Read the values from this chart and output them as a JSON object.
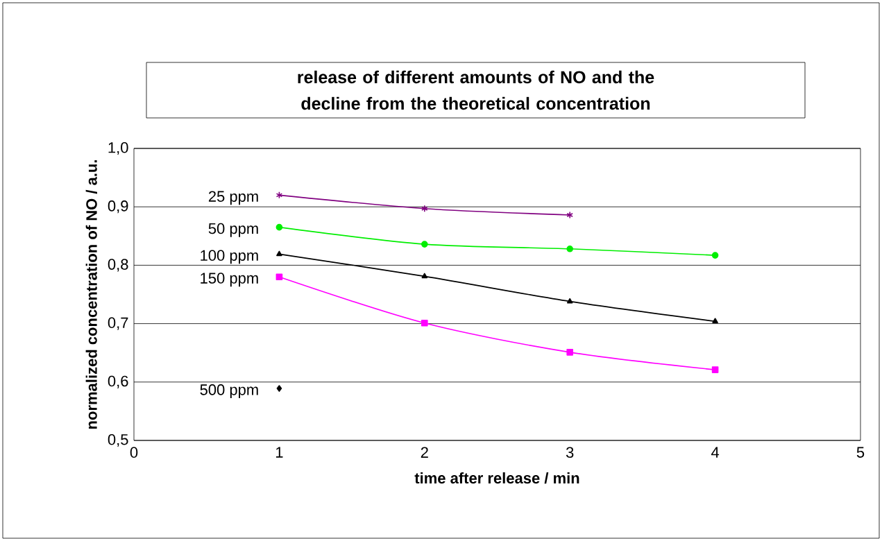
{
  "chart_data": {
    "type": "line",
    "title": "release of different amounts of NO and the decline from the theoretical concentration",
    "xlabel": "time after release / min",
    "ylabel": "normalized concentration of NO / a.u.",
    "xlim": [
      0,
      5
    ],
    "xticks": [
      0,
      1,
      2,
      3,
      4,
      5
    ],
    "ylim": [
      0.5,
      1.0
    ],
    "yticks": [
      {
        "value": 0.5,
        "label": "0,5"
      },
      {
        "value": 0.6,
        "label": "0,6"
      },
      {
        "value": 0.7,
        "label": "0,7"
      },
      {
        "value": 0.8,
        "label": "0,8"
      },
      {
        "value": 0.9,
        "label": "0,9"
      },
      {
        "value": 1.0,
        "label": "1,0"
      }
    ],
    "grid": "y",
    "line_style": "solid",
    "series": [
      {
        "name": "25 ppm",
        "color": "#800080",
        "marker": "cross",
        "x": [
          1,
          2,
          3
        ],
        "values": [
          0.92,
          0.897,
          0.886
        ]
      },
      {
        "name": "50 ppm",
        "color": "#00ee00",
        "marker": "circle",
        "x": [
          1,
          2,
          3,
          4
        ],
        "values": [
          0.865,
          0.836,
          0.828,
          0.817
        ]
      },
      {
        "name": "100 ppm",
        "color": "#000000",
        "marker": "triangle",
        "x": [
          1,
          2,
          3,
          4
        ],
        "values": [
          0.819,
          0.781,
          0.738,
          0.704
        ]
      },
      {
        "name": "150 ppm",
        "color": "#ff00ff",
        "marker": "square",
        "x": [
          1,
          2,
          3,
          4
        ],
        "values": [
          0.78,
          0.701,
          0.651,
          0.621
        ]
      },
      {
        "name": "500 ppm",
        "color": "#000000",
        "marker": "diamond",
        "x": [
          1
        ],
        "values": [
          0.589
        ]
      }
    ]
  }
}
